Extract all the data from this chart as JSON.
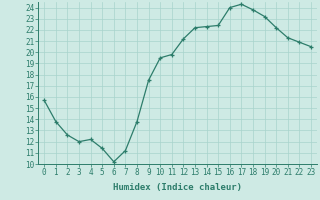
{
  "x": [
    0,
    1,
    2,
    3,
    4,
    5,
    6,
    7,
    8,
    9,
    10,
    11,
    12,
    13,
    14,
    15,
    16,
    17,
    18,
    19,
    20,
    21,
    22,
    23
  ],
  "y": [
    15.7,
    13.8,
    12.6,
    12.0,
    12.2,
    11.4,
    10.2,
    11.2,
    13.8,
    17.5,
    19.5,
    19.8,
    21.2,
    22.2,
    22.3,
    22.4,
    24.0,
    24.3,
    23.8,
    23.2,
    22.2,
    21.3,
    20.9,
    20.5
  ],
  "xlabel": "Humidex (Indice chaleur)",
  "line_color": "#2d7d6b",
  "marker_color": "#2d7d6b",
  "bg_color": "#ceeae4",
  "grid_color": "#a8d4cc",
  "text_color": "#2d7d6b",
  "ylim": [
    10,
    24.5
  ],
  "xlim": [
    -0.5,
    23.5
  ],
  "yticks": [
    10,
    11,
    12,
    13,
    14,
    15,
    16,
    17,
    18,
    19,
    20,
    21,
    22,
    23,
    24
  ],
  "xticks": [
    0,
    1,
    2,
    3,
    4,
    5,
    6,
    7,
    8,
    9,
    10,
    11,
    12,
    13,
    14,
    15,
    16,
    17,
    18,
    19,
    20,
    21,
    22,
    23
  ],
  "xlabel_fontsize": 6.5,
  "tick_fontsize": 5.5
}
